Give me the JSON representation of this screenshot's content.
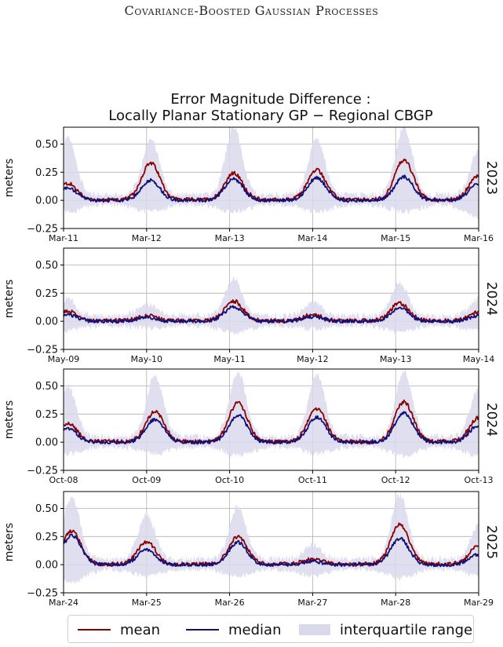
{
  "running_head": "Covariance-Boosted Gaussian Processes",
  "figure_title_line1": "Error Magnitude Difference :",
  "figure_title_line2": "Locally Planar Stationary GP − Regional CBGP",
  "colors": {
    "mean": "#8b0000",
    "median": "#0f107a",
    "iqr": "#d9d9ec"
  },
  "legend": {
    "mean": "mean",
    "median": "median",
    "iqr": "interquartile range"
  },
  "chart_data": [
    {
      "type": "line",
      "year_label": "2023",
      "ylabel": "meters",
      "ylim": [
        -0.25,
        0.65
      ],
      "yticks": [
        "0.50",
        "0.25",
        "0.00",
        "−0.25"
      ],
      "ytick_values": [
        0.5,
        0.25,
        0.0,
        -0.25
      ],
      "xticks": [
        "Mar-11",
        "Mar-12",
        "Mar-13",
        "Mar-14",
        "Mar-15",
        "Mar-16"
      ],
      "grid": true,
      "peaks": [
        {
          "day": 0.05,
          "mean": 0.15,
          "median": 0.11,
          "q_lo": -0.1,
          "q_hi": 0.55
        },
        {
          "day": 1.05,
          "mean": 0.33,
          "median": 0.18,
          "q_lo": -0.1,
          "q_hi": 0.55
        },
        {
          "day": 2.05,
          "mean": 0.24,
          "median": 0.19,
          "q_lo": -0.1,
          "q_hi": 0.65
        },
        {
          "day": 3.05,
          "mean": 0.27,
          "median": 0.2,
          "q_lo": -0.1,
          "q_hi": 0.55
        },
        {
          "day": 4.1,
          "mean": 0.36,
          "median": 0.21,
          "q_lo": -0.1,
          "q_hi": 0.65
        },
        {
          "day": 5.0,
          "mean": 0.22,
          "median": 0.15,
          "q_lo": -0.15,
          "q_hi": 0.45
        }
      ],
      "series": [
        {
          "name": "mean"
        },
        {
          "name": "median"
        },
        {
          "name": "interquartile range"
        }
      ]
    },
    {
      "type": "line",
      "year_label": "2024",
      "ylabel": "meters",
      "ylim": [
        -0.25,
        0.65
      ],
      "yticks": [
        "0.50",
        "0.25",
        "0.00",
        "−0.25"
      ],
      "ytick_values": [
        0.5,
        0.25,
        0.0,
        -0.25
      ],
      "xticks": [
        "May-09",
        "May-10",
        "May-11",
        "May-12",
        "May-13",
        "May-14"
      ],
      "grid": true,
      "peaks": [
        {
          "day": 0.05,
          "mean": 0.09,
          "median": 0.06,
          "q_lo": -0.08,
          "q_hi": 0.2
        },
        {
          "day": 1.0,
          "mean": 0.05,
          "median": 0.03,
          "q_lo": -0.06,
          "q_hi": 0.15
        },
        {
          "day": 2.05,
          "mean": 0.18,
          "median": 0.13,
          "q_lo": -0.1,
          "q_hi": 0.38
        },
        {
          "day": 3.0,
          "mean": 0.06,
          "median": 0.04,
          "q_lo": -0.07,
          "q_hi": 0.18
        },
        {
          "day": 4.05,
          "mean": 0.16,
          "median": 0.12,
          "q_lo": -0.1,
          "q_hi": 0.34
        },
        {
          "day": 5.0,
          "mean": 0.08,
          "median": 0.05,
          "q_lo": -0.08,
          "q_hi": 0.2
        }
      ],
      "series": [
        {
          "name": "mean"
        },
        {
          "name": "median"
        },
        {
          "name": "interquartile range"
        }
      ]
    },
    {
      "type": "line",
      "year_label": "2024",
      "ylabel": "meters",
      "ylim": [
        -0.25,
        0.65
      ],
      "yticks": [
        "0.50",
        "0.25",
        "0.00",
        "−0.25"
      ],
      "ytick_values": [
        0.5,
        0.25,
        0.0,
        -0.25
      ],
      "xticks": [
        "Oct-08",
        "Oct-09",
        "Oct-10",
        "Oct-11",
        "Oct-12",
        "Oct-13"
      ],
      "grid": true,
      "peaks": [
        {
          "day": 0.05,
          "mean": 0.17,
          "median": 0.12,
          "q_lo": -0.1,
          "q_hi": 0.5
        },
        {
          "day": 1.1,
          "mean": 0.27,
          "median": 0.2,
          "q_lo": -0.1,
          "q_hi": 0.6
        },
        {
          "day": 2.1,
          "mean": 0.35,
          "median": 0.24,
          "q_lo": -0.12,
          "q_hi": 0.62
        },
        {
          "day": 3.05,
          "mean": 0.3,
          "median": 0.22,
          "q_lo": -0.1,
          "q_hi": 0.6
        },
        {
          "day": 4.1,
          "mean": 0.36,
          "median": 0.26,
          "q_lo": -0.12,
          "q_hi": 0.63
        },
        {
          "day": 5.0,
          "mean": 0.22,
          "median": 0.15,
          "q_lo": -0.12,
          "q_hi": 0.48
        }
      ],
      "series": [
        {
          "name": "mean"
        },
        {
          "name": "median"
        },
        {
          "name": "interquartile range"
        }
      ]
    },
    {
      "type": "line",
      "year_label": "2025",
      "ylabel": "meters",
      "ylim": [
        -0.25,
        0.65
      ],
      "yticks": [
        "0.50",
        "0.25",
        "0.00",
        "−0.25"
      ],
      "ytick_values": [
        0.5,
        0.25,
        0.0,
        -0.25
      ],
      "xticks": [
        "Mar-24",
        "Mar-25",
        "Mar-26",
        "Mar-27",
        "Mar-28",
        "Mar-29"
      ],
      "grid": true,
      "peaks": [
        {
          "day": 0.1,
          "mean": 0.3,
          "median": 0.26,
          "q_lo": -0.15,
          "q_hi": 0.6
        },
        {
          "day": 1.0,
          "mean": 0.2,
          "median": 0.13,
          "q_lo": -0.1,
          "q_hi": 0.45
        },
        {
          "day": 2.1,
          "mean": 0.25,
          "median": 0.2,
          "q_lo": -0.1,
          "q_hi": 0.52
        },
        {
          "day": 3.0,
          "mean": 0.05,
          "median": 0.03,
          "q_lo": -0.1,
          "q_hi": 0.18
        },
        {
          "day": 4.05,
          "mean": 0.36,
          "median": 0.23,
          "q_lo": -0.12,
          "q_hi": 0.62
        },
        {
          "day": 5.0,
          "mean": 0.17,
          "median": 0.09,
          "q_lo": -0.1,
          "q_hi": 0.35
        }
      ],
      "series": [
        {
          "name": "mean"
        },
        {
          "name": "median"
        },
        {
          "name": "interquartile range"
        }
      ]
    }
  ]
}
